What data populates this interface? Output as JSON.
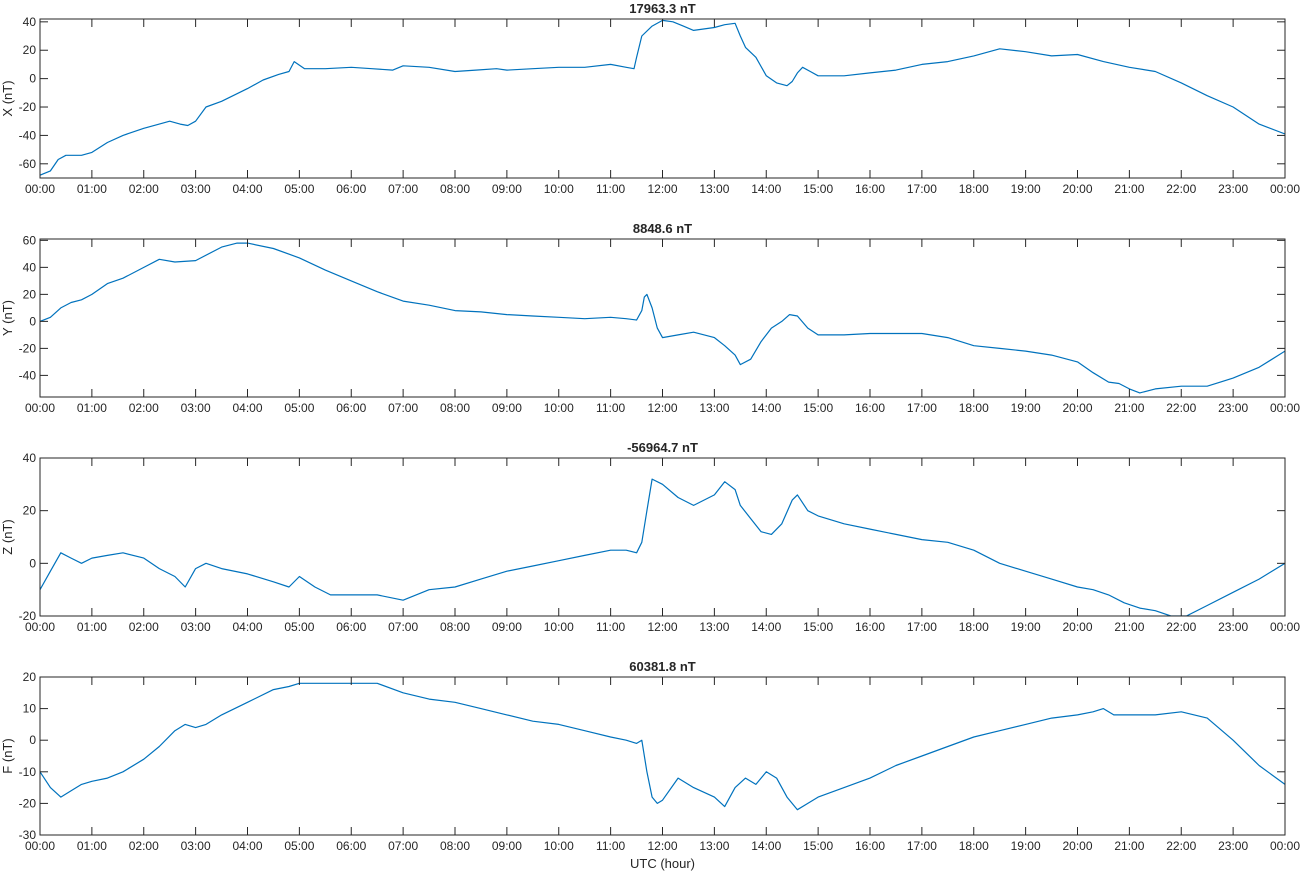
{
  "chart_data": [
    {
      "type": "line",
      "title": "17963.3 nT",
      "ylabel": "X (nT)",
      "xlabel": "",
      "ylim": [
        -70,
        42
      ],
      "yticks": [
        -60,
        -40,
        -20,
        0,
        20,
        40
      ],
      "xticks": [
        "00:00",
        "01:00",
        "02:00",
        "03:00",
        "04:00",
        "05:00",
        "06:00",
        "07:00",
        "08:00",
        "09:00",
        "10:00",
        "11:00",
        "12:00",
        "13:00",
        "14:00",
        "15:00",
        "16:00",
        "17:00",
        "18:00",
        "19:00",
        "20:00",
        "21:00",
        "22:00",
        "23:00",
        "00:00"
      ],
      "xlim_hours": [
        0,
        24
      ],
      "color": "#0072BD",
      "series": [
        {
          "x": [
            0,
            0.2,
            0.35,
            0.5,
            0.8,
            1,
            1.3,
            1.6,
            2,
            2.3,
            2.5,
            2.7,
            2.85,
            3,
            3.2,
            3.5,
            4,
            4.3,
            4.6,
            4.8,
            4.9,
            5.1,
            5.5,
            6,
            6.4,
            6.8,
            7,
            7.5,
            8,
            8.4,
            8.8,
            9,
            9.5,
            10,
            10.5,
            11,
            11.3,
            11.45,
            11.5,
            11.6,
            11.8,
            12,
            12.2,
            12.4,
            12.6,
            13,
            13.2,
            13.4,
            13.5,
            13.6,
            13.8,
            14,
            14.2,
            14.4,
            14.5,
            14.6,
            14.7,
            14.85,
            15,
            15.5,
            16,
            16.5,
            17,
            17.5,
            18,
            18.5,
            19,
            19.5,
            20,
            20.5,
            21,
            21.5,
            22,
            22.5,
            23,
            23.5,
            24
          ],
          "y": [
            -68,
            -65,
            -57,
            -54,
            -54,
            -52,
            -45,
            -40,
            -35,
            -32,
            -30,
            -32,
            -33,
            -30,
            -20,
            -16,
            -7,
            -1,
            3,
            5,
            12,
            7,
            7,
            8,
            7,
            6,
            9,
            8,
            5,
            6,
            7,
            6,
            7,
            8,
            8,
            10,
            8,
            7,
            15,
            30,
            37,
            41,
            40,
            37,
            34,
            36,
            38,
            39,
            30,
            22,
            15,
            2,
            -3,
            -5,
            -2,
            4,
            8,
            5,
            2,
            2,
            4,
            6,
            10,
            12,
            16,
            21,
            19,
            16,
            17,
            12,
            8,
            5,
            -3,
            -12,
            -20,
            -32,
            -39
          ]
        }
      ]
    },
    {
      "type": "line",
      "title": "8848.6 nT",
      "ylabel": "Y (nT)",
      "xlabel": "",
      "ylim": [
        -56,
        61
      ],
      "yticks": [
        -40,
        -20,
        0,
        20,
        40,
        60
      ],
      "xticks": [
        "00:00",
        "01:00",
        "02:00",
        "03:00",
        "04:00",
        "05:00",
        "06:00",
        "07:00",
        "08:00",
        "09:00",
        "10:00",
        "11:00",
        "12:00",
        "13:00",
        "14:00",
        "15:00",
        "16:00",
        "17:00",
        "18:00",
        "19:00",
        "20:00",
        "21:00",
        "22:00",
        "23:00",
        "00:00"
      ],
      "xlim_hours": [
        0,
        24
      ],
      "color": "#0072BD",
      "series": [
        {
          "x": [
            0,
            0.2,
            0.4,
            0.6,
            0.8,
            1,
            1.3,
            1.6,
            2,
            2.3,
            2.6,
            3,
            3.5,
            3.8,
            4,
            4.5,
            5,
            5.5,
            6,
            6.5,
            7,
            7.5,
            8,
            8.5,
            9,
            9.5,
            10,
            10.5,
            11,
            11.3,
            11.5,
            11.6,
            11.65,
            11.7,
            11.8,
            11.9,
            12,
            12.3,
            12.6,
            13,
            13.2,
            13.4,
            13.5,
            13.7,
            13.9,
            14.1,
            14.3,
            14.45,
            14.6,
            14.8,
            15,
            15.5,
            16,
            16.5,
            17,
            17.5,
            18,
            18.5,
            19,
            19.5,
            20,
            20.3,
            20.6,
            20.8,
            21,
            21.2,
            21.5,
            22,
            22.5,
            23,
            23.5,
            24
          ],
          "y": [
            0,
            3,
            10,
            14,
            16,
            20,
            28,
            32,
            40,
            46,
            44,
            45,
            55,
            58,
            58,
            54,
            47,
            38,
            30,
            22,
            15,
            12,
            8,
            7,
            5,
            4,
            3,
            2,
            3,
            2,
            1,
            8,
            18,
            20,
            10,
            -5,
            -12,
            -10,
            -8,
            -12,
            -18,
            -25,
            -32,
            -28,
            -15,
            -5,
            0,
            5,
            4,
            -5,
            -10,
            -10,
            -9,
            -9,
            -9,
            -12,
            -18,
            -20,
            -22,
            -25,
            -30,
            -38,
            -45,
            -46,
            -50,
            -53,
            -50,
            -48,
            -48,
            -42,
            -34,
            -22
          ]
        }
      ]
    },
    {
      "type": "line",
      "title": "-56964.7 nT",
      "ylabel": "Z (nT)",
      "xlabel": "",
      "ylim": [
        -20,
        40
      ],
      "yticks": [
        -20,
        0,
        20,
        40
      ],
      "xticks": [
        "00:00",
        "01:00",
        "02:00",
        "03:00",
        "04:00",
        "05:00",
        "06:00",
        "07:00",
        "08:00",
        "09:00",
        "10:00",
        "11:00",
        "12:00",
        "13:00",
        "14:00",
        "15:00",
        "16:00",
        "17:00",
        "18:00",
        "19:00",
        "20:00",
        "21:00",
        "22:00",
        "23:00",
        "00:00"
      ],
      "xlim_hours": [
        0,
        24
      ],
      "color": "#0072BD",
      "series": [
        {
          "x": [
            0,
            0.2,
            0.4,
            0.6,
            0.8,
            1,
            1.3,
            1.6,
            2,
            2.3,
            2.6,
            2.8,
            3,
            3.2,
            3.5,
            4,
            4.5,
            4.8,
            5,
            5.3,
            5.6,
            6,
            6.5,
            7,
            7.5,
            8,
            8.5,
            9,
            9.5,
            10,
            10.5,
            11,
            11.3,
            11.5,
            11.6,
            11.7,
            11.8,
            12,
            12.3,
            12.6,
            13,
            13.2,
            13.4,
            13.5,
            13.7,
            13.9,
            14.1,
            14.3,
            14.5,
            14.6,
            14.8,
            15,
            15.5,
            16,
            16.5,
            17,
            17.5,
            18,
            18.5,
            19,
            19.5,
            20,
            20.3,
            20.6,
            20.9,
            21.2,
            21.5,
            21.8,
            22.1,
            22.5,
            23,
            23.5,
            24
          ],
          "y": [
            -10,
            -3,
            4,
            2,
            0,
            2,
            3,
            4,
            2,
            -2,
            -5,
            -9,
            -2,
            0,
            -2,
            -4,
            -7,
            -9,
            -5,
            -9,
            -12,
            -12,
            -12,
            -14,
            -10,
            -9,
            -6,
            -3,
            -1,
            1,
            3,
            5,
            5,
            4,
            8,
            20,
            32,
            30,
            25,
            22,
            26,
            31,
            28,
            22,
            17,
            12,
            11,
            15,
            24,
            26,
            20,
            18,
            15,
            13,
            11,
            9,
            8,
            5,
            0,
            -3,
            -6,
            -9,
            -10,
            -12,
            -15,
            -17,
            -18,
            -20,
            -20,
            -16,
            -11,
            -6,
            0
          ]
        }
      ]
    },
    {
      "type": "line",
      "title": "60381.8 nT",
      "ylabel": "F (nT)",
      "xlabel": "UTC (hour)",
      "ylim": [
        -30,
        20
      ],
      "yticks": [
        -30,
        -20,
        -10,
        0,
        10,
        20
      ],
      "xticks": [
        "00:00",
        "01:00",
        "02:00",
        "03:00",
        "04:00",
        "05:00",
        "06:00",
        "07:00",
        "08:00",
        "09:00",
        "10:00",
        "11:00",
        "12:00",
        "13:00",
        "14:00",
        "15:00",
        "16:00",
        "17:00",
        "18:00",
        "19:00",
        "20:00",
        "21:00",
        "22:00",
        "23:00",
        "00:00"
      ],
      "xlim_hours": [
        0,
        24
      ],
      "color": "#0072BD",
      "series": [
        {
          "x": [
            0,
            0.2,
            0.4,
            0.6,
            0.8,
            1,
            1.3,
            1.6,
            2,
            2.3,
            2.6,
            2.8,
            3,
            3.2,
            3.5,
            4,
            4.5,
            4.8,
            5,
            5.5,
            6,
            6.5,
            7,
            7.5,
            8,
            8.5,
            9,
            9.5,
            10,
            10.5,
            11,
            11.3,
            11.5,
            11.6,
            11.7,
            11.8,
            11.9,
            12,
            12.3,
            12.6,
            13,
            13.2,
            13.4,
            13.6,
            13.8,
            14,
            14.2,
            14.4,
            14.6,
            14.8,
            15,
            15.5,
            16,
            16.5,
            17,
            17.5,
            18,
            18.5,
            19,
            19.5,
            20,
            20.3,
            20.5,
            20.7,
            21,
            21.5,
            22,
            22.5,
            23,
            23.5,
            24
          ],
          "y": [
            -10,
            -15,
            -18,
            -16,
            -14,
            -13,
            -12,
            -10,
            -6,
            -2,
            3,
            5,
            4,
            5,
            8,
            12,
            16,
            17,
            18,
            18,
            18,
            18,
            15,
            13,
            12,
            10,
            8,
            6,
            5,
            3,
            1,
            0,
            -1,
            0,
            -10,
            -18,
            -20,
            -19,
            -12,
            -15,
            -18,
            -21,
            -15,
            -12,
            -14,
            -10,
            -12,
            -18,
            -22,
            -20,
            -18,
            -15,
            -12,
            -8,
            -5,
            -2,
            1,
            3,
            5,
            7,
            8,
            9,
            10,
            8,
            8,
            8,
            9,
            7,
            0,
            -8,
            -14
          ]
        }
      ]
    }
  ]
}
